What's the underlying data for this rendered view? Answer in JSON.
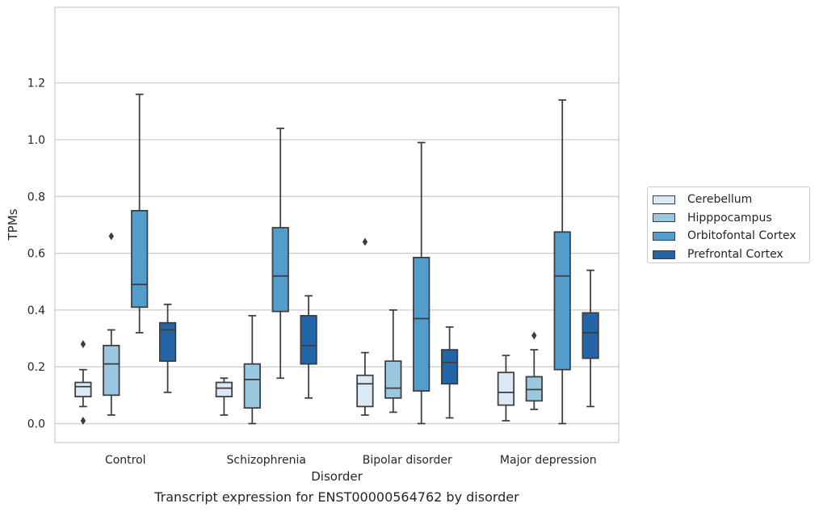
{
  "chart_data": {
    "type": "box",
    "title": "",
    "xlabel": "Disorder",
    "ylabel": "TPMs",
    "ylim": [
      -0.055,
      1.22
    ],
    "yticks": [
      "0.0",
      "0.2",
      "0.4",
      "0.6",
      "0.8",
      "1.0",
      "1.2"
    ],
    "grid": "horizontal",
    "legend_position": "right",
    "categories": [
      "Control",
      "Schizophrenia",
      "Bipolar disorder",
      "Major depression"
    ],
    "series": [
      {
        "name": "Cerebellum",
        "color": "#dbe9f6",
        "boxes": [
          {
            "whislo": 0.06,
            "q1": 0.095,
            "med": 0.13,
            "q3": 0.145,
            "whishi": 0.19,
            "fliers": [
              0.28,
              0.01
            ]
          },
          {
            "whislo": 0.03,
            "q1": 0.095,
            "med": 0.125,
            "q3": 0.145,
            "whishi": 0.16,
            "fliers": []
          },
          {
            "whislo": 0.03,
            "q1": 0.06,
            "med": 0.14,
            "q3": 0.17,
            "whishi": 0.25,
            "fliers": [
              0.64
            ]
          },
          {
            "whislo": 0.01,
            "q1": 0.065,
            "med": 0.11,
            "q3": 0.18,
            "whishi": 0.24,
            "fliers": []
          }
        ]
      },
      {
        "name": "Hipppocampus",
        "color": "#9ac8e0",
        "boxes": [
          {
            "whislo": 0.03,
            "q1": 0.1,
            "med": 0.21,
            "q3": 0.275,
            "whishi": 0.33,
            "fliers": [
              0.66
            ]
          },
          {
            "whislo": 0.0,
            "q1": 0.055,
            "med": 0.155,
            "q3": 0.21,
            "whishi": 0.38,
            "fliers": []
          },
          {
            "whislo": 0.04,
            "q1": 0.09,
            "med": 0.125,
            "q3": 0.22,
            "whishi": 0.4,
            "fliers": []
          },
          {
            "whislo": 0.05,
            "q1": 0.08,
            "med": 0.12,
            "q3": 0.165,
            "whishi": 0.26,
            "fliers": [
              0.31
            ]
          }
        ]
      },
      {
        "name": "Orbitofontal Cortex",
        "color": "#529dcc",
        "boxes": [
          {
            "whislo": 0.32,
            "q1": 0.41,
            "med": 0.49,
            "q3": 0.75,
            "whishi": 1.16,
            "fliers": []
          },
          {
            "whislo": 0.16,
            "q1": 0.395,
            "med": 0.52,
            "q3": 0.69,
            "whishi": 1.04,
            "fliers": []
          },
          {
            "whislo": 0.0,
            "q1": 0.115,
            "med": 0.37,
            "q3": 0.585,
            "whishi": 0.99,
            "fliers": []
          },
          {
            "whislo": 0.0,
            "q1": 0.19,
            "med": 0.52,
            "q3": 0.675,
            "whishi": 1.14,
            "fliers": []
          }
        ]
      },
      {
        "name": "Prefrontal Cortex",
        "color": "#2465a8",
        "boxes": [
          {
            "whislo": 0.11,
            "q1": 0.22,
            "med": 0.33,
            "q3": 0.355,
            "whishi": 0.42,
            "fliers": []
          },
          {
            "whislo": 0.09,
            "q1": 0.21,
            "med": 0.275,
            "q3": 0.38,
            "whishi": 0.45,
            "fliers": []
          },
          {
            "whislo": 0.02,
            "q1": 0.14,
            "med": 0.215,
            "q3": 0.26,
            "whishi": 0.34,
            "fliers": []
          },
          {
            "whislo": 0.06,
            "q1": 0.23,
            "med": 0.32,
            "q3": 0.39,
            "whishi": 0.54,
            "fliers": []
          }
        ]
      }
    ],
    "caption": "Transcript expression for ENST00000564762 by disorder"
  }
}
